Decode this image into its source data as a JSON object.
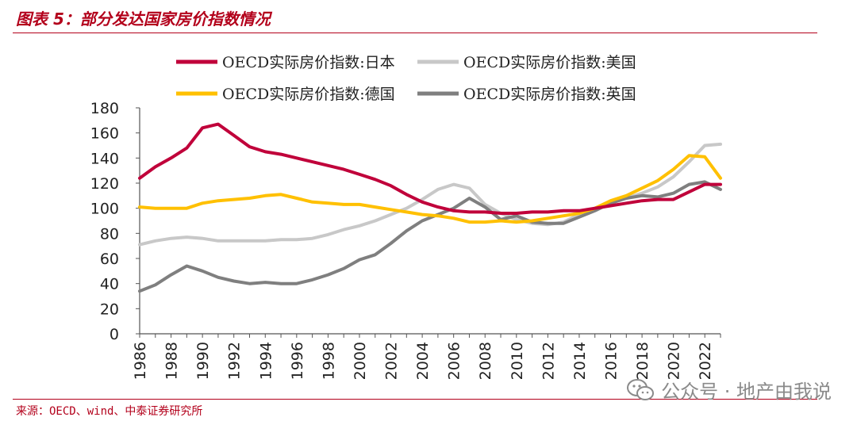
{
  "header": {
    "title": "图表 5：部分发达国家房价指数情况"
  },
  "footer": {
    "source": "来源：OECD、wind、中泰证券研究所"
  },
  "watermark": {
    "text": "公众号 · 地产由我说",
    "icon": "wechat-icon"
  },
  "chart_data": {
    "type": "line",
    "title": "",
    "xlabel": "",
    "ylabel": "",
    "ylim": [
      0,
      180
    ],
    "xlim": [
      1986,
      2023
    ],
    "yticks": [
      0,
      20,
      40,
      60,
      80,
      100,
      120,
      140,
      160,
      180
    ],
    "xticks": [
      "1986",
      "1988",
      "1990",
      "1992",
      "1994",
      "1996",
      "1998",
      "2000",
      "2002",
      "2004",
      "2006",
      "2008",
      "2010",
      "2012",
      "2014",
      "2016",
      "2018",
      "2020",
      "2022"
    ],
    "grid": false,
    "legend_position": "top",
    "x": [
      1986,
      1987,
      1988,
      1989,
      1990,
      1991,
      1992,
      1993,
      1994,
      1995,
      1996,
      1997,
      1998,
      1999,
      2000,
      2001,
      2002,
      2003,
      2004,
      2005,
      2006,
      2007,
      2008,
      2009,
      2010,
      2011,
      2012,
      2013,
      2014,
      2015,
      2016,
      2017,
      2018,
      2019,
      2020,
      2021,
      2022,
      2023
    ],
    "series": [
      {
        "name": "OECD实际房价指数:美国",
        "color": "#c8c8c8",
        "values": [
          71,
          74,
          76,
          77,
          76,
          74,
          74,
          74,
          74,
          75,
          75,
          76,
          79,
          83,
          86,
          90,
          95,
          100,
          107,
          115,
          119,
          116,
          103,
          96,
          91,
          88,
          87,
          89,
          95,
          100,
          105,
          108,
          112,
          117,
          125,
          137,
          150,
          151
        ]
      },
      {
        "name": "OECD实际房价指数:英国",
        "color": "#7f7f7f",
        "values": [
          34,
          39,
          47,
          54,
          50,
          45,
          42,
          40,
          41,
          40,
          40,
          43,
          47,
          52,
          59,
          63,
          72,
          82,
          90,
          95,
          100,
          108,
          101,
          91,
          94,
          89,
          88,
          88,
          93,
          98,
          104,
          108,
          110,
          109,
          112,
          119,
          121,
          115
        ]
      },
      {
        "name": "OECD实际房价指数:德国",
        "color": "#ffc000",
        "values": [
          101,
          100,
          100,
          100,
          104,
          106,
          107,
          108,
          110,
          111,
          108,
          105,
          104,
          103,
          103,
          101,
          99,
          97,
          95,
          94,
          92,
          89,
          89,
          90,
          89,
          90,
          92,
          94,
          96,
          100,
          106,
          110,
          116,
          122,
          131,
          142,
          141,
          124
        ]
      },
      {
        "name": "OECD实际房价指数:日本",
        "color": "#c0003a",
        "values": [
          124,
          133,
          140,
          148,
          164,
          167,
          158,
          149,
          145,
          143,
          140,
          137,
          134,
          131,
          127,
          123,
          118,
          111,
          105,
          101,
          98,
          97,
          97,
          96,
          96,
          97,
          97,
          98,
          98,
          100,
          102,
          104,
          106,
          107,
          107,
          113,
          119,
          119
        ]
      }
    ],
    "legend_order": [
      "OECD实际房价指数:日本",
      "OECD实际房价指数:美国",
      "OECD实际房价指数:德国",
      "OECD实际房价指数:英国"
    ]
  }
}
